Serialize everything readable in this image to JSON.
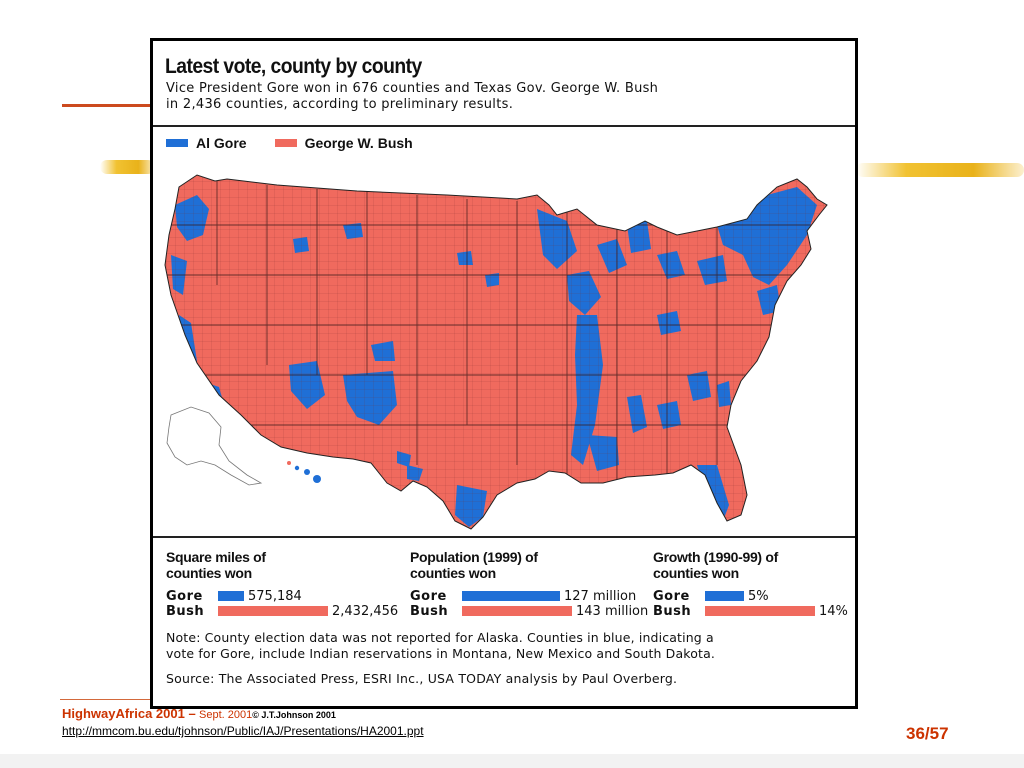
{
  "graphic": {
    "title": "Latest vote, county by county",
    "subtitle_line1": "Vice President Gore won in 676 counties and Texas Gov. George W. Bush",
    "subtitle_line2": "in 2,436 counties, according to preliminary results.",
    "legend": [
      {
        "label": "Al Gore",
        "color": "#1f6fd6"
      },
      {
        "label": "George W. Bush",
        "color": "#f06a5e"
      }
    ],
    "colors": {
      "gore": "#1f6fd6",
      "bush": "#f06a5e",
      "alaska": "#ffffff"
    },
    "stats": [
      {
        "heading_line1": "Square miles of",
        "heading_line2": "counties won",
        "gore_label": "Gore",
        "gore_value": "575,184",
        "bush_label": "Bush",
        "bush_value": "2,432,456",
        "gore_amount": 575184,
        "bush_amount": 2432456
      },
      {
        "heading_line1": "Population (1999) of",
        "heading_line2": "counties won",
        "gore_label": "Gore",
        "gore_value": "127 million",
        "bush_label": "Bush",
        "bush_value": "143 million",
        "gore_amount": 127,
        "bush_amount": 143
      },
      {
        "heading_line1": "Growth (1990-99) of",
        "heading_line2": "counties won",
        "gore_label": "Gore",
        "gore_value": "5%",
        "bush_label": "Bush",
        "bush_value": "14%",
        "gore_amount": 5,
        "bush_amount": 14
      }
    ],
    "note_line1": "Note: County election data was not reported for Alaska. Counties in blue, indicating a",
    "note_line2": "vote for Gore, include Indian reservations in Montana, New Mexico and South Dakota.",
    "source": "Source: The Associated Press, ESRI Inc., USA TODAY analysis by Paul Overberg."
  },
  "footer": {
    "brand": "HighwayAfrica 2001 –",
    "date": "Sept. 2001",
    "copyright": "© J.T.Johnson 2001",
    "url": "http://mmcom.bu.edu/tjohnson/Public/IAJ/Presentations/HA2001.ppt",
    "page": "36/57"
  }
}
